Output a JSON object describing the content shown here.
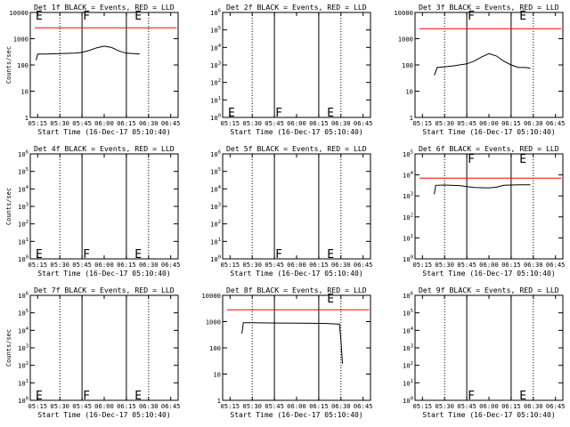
{
  "colors": {
    "events": "#000000",
    "lld": "#ff0000",
    "background": "#ffffff"
  },
  "chart_data": [
    {
      "type": "line",
      "title": "Det 1f BLACK = Events, RED = LLD",
      "xlabel": "Start Time (16-Dec-17 05:10:40)",
      "ylabel": "Counts/sec",
      "x_ticks": [
        "05:15",
        "05:30",
        "05:45",
        "06:00",
        "06:15",
        "06:30",
        "06:45"
      ],
      "y_scale": "log",
      "ylim": [
        1,
        10000
      ],
      "y_ticks": [
        "1",
        "10",
        "100",
        "1000",
        "10000"
      ],
      "dotted_vlines": [
        "05:30",
        "06:30"
      ],
      "solid_vlines": [
        "05:45",
        "06:15"
      ],
      "markers": [
        {
          "label": "E",
          "x": "05:13",
          "y": 8000
        },
        {
          "label": "F",
          "x": "05:45",
          "y": 8000
        },
        {
          "label": "E",
          "x": "06:20",
          "y": 8000
        }
      ],
      "series": [
        {
          "color": "#ff0000",
          "x": [
            "05:13",
            "06:49"
          ],
          "y": [
            2600,
            2600
          ]
        },
        {
          "color": "#000000",
          "x": [
            "05:14",
            "05:15",
            "05:20",
            "05:30",
            "05:40",
            "05:45",
            "05:50",
            "05:55",
            "06:00",
            "06:05",
            "06:10",
            "06:15",
            "06:20",
            "06:24"
          ],
          "y": [
            150,
            260,
            260,
            270,
            280,
            300,
            360,
            450,
            520,
            460,
            340,
            280,
            270,
            260
          ]
        }
      ]
    },
    {
      "type": "line",
      "title": "Det 2f BLACK = Events, RED = LLD",
      "xlabel": "Start Time (16-Dec-17 05:10:40)",
      "ylabel": "",
      "x_ticks": [
        "05:15",
        "05:30",
        "05:45",
        "06:00",
        "06:15",
        "06:30",
        "06:45"
      ],
      "y_scale": "log",
      "ylim": [
        1,
        1000000
      ],
      "y_ticks": [
        "10^0",
        "10^1",
        "10^2",
        "10^3",
        "10^4",
        "10^5",
        "10^6"
      ],
      "dotted_vlines": [
        "05:30",
        "06:30"
      ],
      "solid_vlines": [
        "05:45",
        "06:15"
      ],
      "markers": [
        {
          "label": "E",
          "x": "05:13",
          "y": 2
        },
        {
          "label": "F",
          "x": "05:45",
          "y": 2
        },
        {
          "label": "E",
          "x": "06:20",
          "y": 2
        }
      ],
      "series": []
    },
    {
      "type": "line",
      "title": "Det 3f BLACK = Events, RED = LLD",
      "xlabel": "Start Time (16-Dec-17 05:10:40)",
      "ylabel": "",
      "x_ticks": [
        "05:15",
        "05:30",
        "05:45",
        "06:00",
        "06:15",
        "06:30",
        "06:45"
      ],
      "y_scale": "log",
      "ylim": [
        1,
        10000
      ],
      "y_ticks": [
        "1",
        "10",
        "100",
        "1000",
        "10000"
      ],
      "dotted_vlines": [
        "05:30",
        "06:30"
      ],
      "solid_vlines": [
        "05:45",
        "06:15"
      ],
      "markers": [
        {
          "label": "F",
          "x": "05:45",
          "y": 8000
        },
        {
          "label": "E",
          "x": "06:20",
          "y": 8000
        }
      ],
      "series": [
        {
          "color": "#ff0000",
          "x": [
            "05:13",
            "06:49"
          ],
          "y": [
            2400,
            2400
          ]
        },
        {
          "color": "#000000",
          "x": [
            "05:23",
            "05:25",
            "05:30",
            "05:35",
            "05:40",
            "05:45",
            "05:50",
            "05:55",
            "06:00",
            "06:05",
            "06:10",
            "06:15",
            "06:20",
            "06:25",
            "06:28"
          ],
          "y": [
            40,
            80,
            85,
            90,
            100,
            110,
            140,
            200,
            270,
            220,
            140,
            100,
            80,
            80,
            75
          ]
        }
      ]
    },
    {
      "type": "line",
      "title": "Det 4f BLACK = Events, RED = LLD",
      "xlabel": "Start Time (16-Dec-17 05:10:40)",
      "ylabel": "Counts/sec",
      "x_ticks": [
        "05:15",
        "05:30",
        "05:45",
        "06:00",
        "06:15",
        "06:30",
        "06:45"
      ],
      "y_scale": "log",
      "ylim": [
        1,
        1000000
      ],
      "y_ticks": [
        "10^0",
        "10^1",
        "10^2",
        "10^3",
        "10^4",
        "10^5",
        "10^6"
      ],
      "dotted_vlines": [
        "05:30",
        "06:30"
      ],
      "solid_vlines": [
        "05:45",
        "06:15"
      ],
      "markers": [
        {
          "label": "E",
          "x": "05:13",
          "y": 2
        },
        {
          "label": "F",
          "x": "05:45",
          "y": 2
        },
        {
          "label": "E",
          "x": "06:20",
          "y": 2
        }
      ],
      "series": []
    },
    {
      "type": "line",
      "title": "Det 5f BLACK = Events, RED = LLD",
      "xlabel": "Start Time (16-Dec-17 05:10:40)",
      "ylabel": "",
      "x_ticks": [
        "05:15",
        "05:30",
        "05:45",
        "06:00",
        "06:15",
        "06:30",
        "06:45"
      ],
      "y_scale": "log",
      "ylim": [
        1,
        1000000
      ],
      "y_ticks": [
        "10^0",
        "10^1",
        "10^2",
        "10^3",
        "10^4",
        "10^5",
        "10^6"
      ],
      "dotted_vlines": [
        "05:30",
        "06:30"
      ],
      "solid_vlines": [
        "05:45",
        "06:15"
      ],
      "markers": [
        {
          "label": "F",
          "x": "05:45",
          "y": 2
        },
        {
          "label": "E",
          "x": "06:20",
          "y": 2
        }
      ],
      "series": []
    },
    {
      "type": "line",
      "title": "Det 6f BLACK = Events, RED = LLD",
      "xlabel": "Start Time (16-Dec-17 05:10:40)",
      "ylabel": "",
      "x_ticks": [
        "05:15",
        "05:30",
        "05:45",
        "06:00",
        "06:15",
        "06:30",
        "06:45"
      ],
      "y_scale": "log",
      "ylim": [
        1,
        100000
      ],
      "y_ticks": [
        "10^0",
        "10^1",
        "10^2",
        "10^3",
        "10^4",
        "10^5"
      ],
      "dotted_vlines": [
        "05:30",
        "06:30"
      ],
      "solid_vlines": [
        "05:45",
        "06:15"
      ],
      "markers": [
        {
          "label": "F",
          "x": "05:45",
          "y": 60000
        },
        {
          "label": "E",
          "x": "06:20",
          "y": 60000
        }
      ],
      "series": [
        {
          "color": "#ff0000",
          "x": [
            "05:13",
            "06:49"
          ],
          "y": [
            7000,
            7000
          ]
        },
        {
          "color": "#000000",
          "x": [
            "05:23",
            "05:24",
            "05:30",
            "05:40",
            "05:50",
            "06:00",
            "06:05",
            "06:10",
            "06:20",
            "06:28"
          ],
          "y": [
            1200,
            3200,
            3300,
            3100,
            2500,
            2400,
            2600,
            3200,
            3400,
            3400
          ]
        }
      ]
    },
    {
      "type": "line",
      "title": "Det 7f BLACK = Events, RED = LLD",
      "xlabel": "Start Time (16-Dec-17 05:10:40)",
      "ylabel": "Counts/sec",
      "x_ticks": [
        "05:15",
        "05:30",
        "05:45",
        "06:00",
        "06:15",
        "06:30",
        "06:45"
      ],
      "y_scale": "log",
      "ylim": [
        1,
        1000000
      ],
      "y_ticks": [
        "10^0",
        "10^1",
        "10^2",
        "10^3",
        "10^4",
        "10^5",
        "10^6"
      ],
      "dotted_vlines": [
        "05:30",
        "06:30"
      ],
      "solid_vlines": [
        "05:45",
        "06:15"
      ],
      "markers": [
        {
          "label": "E",
          "x": "05:13",
          "y": 2
        },
        {
          "label": "F",
          "x": "05:45",
          "y": 2
        },
        {
          "label": "E",
          "x": "06:20",
          "y": 2
        }
      ],
      "series": []
    },
    {
      "type": "line",
      "title": "Det 8f BLACK = Events, RED = LLD",
      "xlabel": "Start Time (16-Dec-17 05:10:40)",
      "ylabel": "",
      "x_ticks": [
        "05:15",
        "05:30",
        "05:45",
        "06:00",
        "06:15",
        "06:30",
        "06:45"
      ],
      "y_scale": "log",
      "ylim": [
        1,
        10000
      ],
      "y_ticks": [
        "1",
        "10",
        "100",
        "1000",
        "10000"
      ],
      "dotted_vlines": [
        "05:30",
        "06:30"
      ],
      "solid_vlines": [
        "05:45",
        "06:15"
      ],
      "markers": [
        {
          "label": "E",
          "x": "06:20",
          "y": 8000
        }
      ],
      "series": [
        {
          "color": "#ff0000",
          "x": [
            "05:13",
            "06:49"
          ],
          "y": [
            2800,
            2800
          ]
        },
        {
          "color": "#000000",
          "x": [
            "05:23",
            "05:24",
            "05:30",
            "05:45",
            "06:00",
            "06:10",
            "06:20",
            "06:29",
            "06:30",
            "06:31"
          ],
          "y": [
            350,
            900,
            900,
            880,
            870,
            860,
            850,
            800,
            200,
            25
          ]
        }
      ]
    },
    {
      "type": "line",
      "title": "Det 9f BLACK = Events, RED = LLD",
      "xlabel": "Start Time (16-Dec-17 05:10:40)",
      "ylabel": "",
      "x_ticks": [
        "05:15",
        "05:30",
        "05:45",
        "06:00",
        "06:15",
        "06:30",
        "06:45"
      ],
      "y_scale": "log",
      "ylim": [
        1,
        1000000
      ],
      "y_ticks": [
        "10^0",
        "10^1",
        "10^2",
        "10^3",
        "10^4",
        "10^5",
        "10^6"
      ],
      "dotted_vlines": [
        "05:30",
        "06:30"
      ],
      "solid_vlines": [
        "05:45",
        "06:15"
      ],
      "markers": [
        {
          "label": "F",
          "x": "05:45",
          "y": 2
        },
        {
          "label": "E",
          "x": "06:20",
          "y": 2
        }
      ],
      "series": []
    }
  ]
}
